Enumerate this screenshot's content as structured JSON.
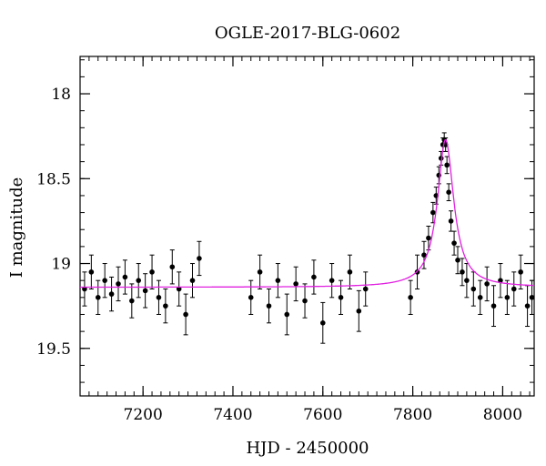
{
  "chart_data": {
    "type": "scatter",
    "title": "OGLE-2017-BLG-0602",
    "xlabel": "HJD - 2450000",
    "ylabel": "I magnitude",
    "xlim": [
      7060,
      8070
    ],
    "ylim": [
      19.78,
      17.78
    ],
    "y_inverted": true,
    "x_ticks": [
      7200,
      7400,
      7600,
      7800,
      8000
    ],
    "y_ticks": [
      18,
      18.5,
      19,
      19.5
    ],
    "x_tick_labels": [
      "7200",
      "7400",
      "7600",
      "7800",
      "8000"
    ],
    "y_tick_labels": [
      "18",
      "18.5",
      "19",
      "19.5"
    ],
    "grid": false,
    "series": [
      {
        "kind": "points-with-errorbars",
        "color": "#000000",
        "x": [
          7070,
          7085,
          7100,
          7115,
          7130,
          7145,
          7160,
          7175,
          7190,
          7205,
          7220,
          7235,
          7250,
          7265,
          7280,
          7295,
          7310,
          7325,
          7440,
          7460,
          7480,
          7500,
          7520,
          7540,
          7560,
          7580,
          7600,
          7620,
          7640,
          7660,
          7680,
          7695,
          7795,
          7810,
          7825,
          7835,
          7845,
          7852,
          7858,
          7863,
          7867,
          7870,
          7873,
          7876,
          7880,
          7885,
          7892,
          7900,
          7910,
          7920,
          7935,
          7950,
          7965,
          7980,
          7995,
          8010,
          8025,
          8040,
          8055,
          8065
        ],
        "y": [
          19.15,
          19.05,
          19.2,
          19.1,
          19.18,
          19.12,
          19.08,
          19.22,
          19.1,
          19.16,
          19.05,
          19.2,
          19.25,
          19.02,
          19.15,
          19.3,
          19.1,
          18.97,
          19.2,
          19.05,
          19.25,
          19.1,
          19.3,
          19.12,
          19.22,
          19.08,
          19.35,
          19.1,
          19.2,
          19.05,
          19.28,
          19.15,
          19.2,
          19.05,
          18.95,
          18.85,
          18.7,
          18.6,
          18.48,
          18.38,
          18.3,
          18.27,
          18.3,
          18.42,
          18.58,
          18.75,
          18.88,
          18.98,
          19.05,
          19.1,
          19.15,
          19.2,
          19.12,
          19.25,
          19.1,
          19.2,
          19.15,
          19.05,
          19.25,
          19.2
        ],
        "err": [
          0.1,
          0.1,
          0.1,
          0.1,
          0.1,
          0.1,
          0.1,
          0.1,
          0.1,
          0.1,
          0.1,
          0.1,
          0.1,
          0.1,
          0.1,
          0.12,
          0.1,
          0.1,
          0.1,
          0.1,
          0.1,
          0.1,
          0.12,
          0.1,
          0.1,
          0.1,
          0.12,
          0.1,
          0.1,
          0.1,
          0.12,
          0.1,
          0.1,
          0.1,
          0.08,
          0.07,
          0.06,
          0.05,
          0.05,
          0.04,
          0.04,
          0.04,
          0.04,
          0.05,
          0.05,
          0.06,
          0.07,
          0.08,
          0.08,
          0.1,
          0.1,
          0.1,
          0.1,
          0.12,
          0.1,
          0.1,
          0.1,
          0.1,
          0.12,
          0.1
        ]
      },
      {
        "kind": "model-curve",
        "color": "#e020e0",
        "baseline": 19.14,
        "peak_time": 7873,
        "peak_magnitude": 18.27,
        "timescale": 22
      }
    ]
  }
}
